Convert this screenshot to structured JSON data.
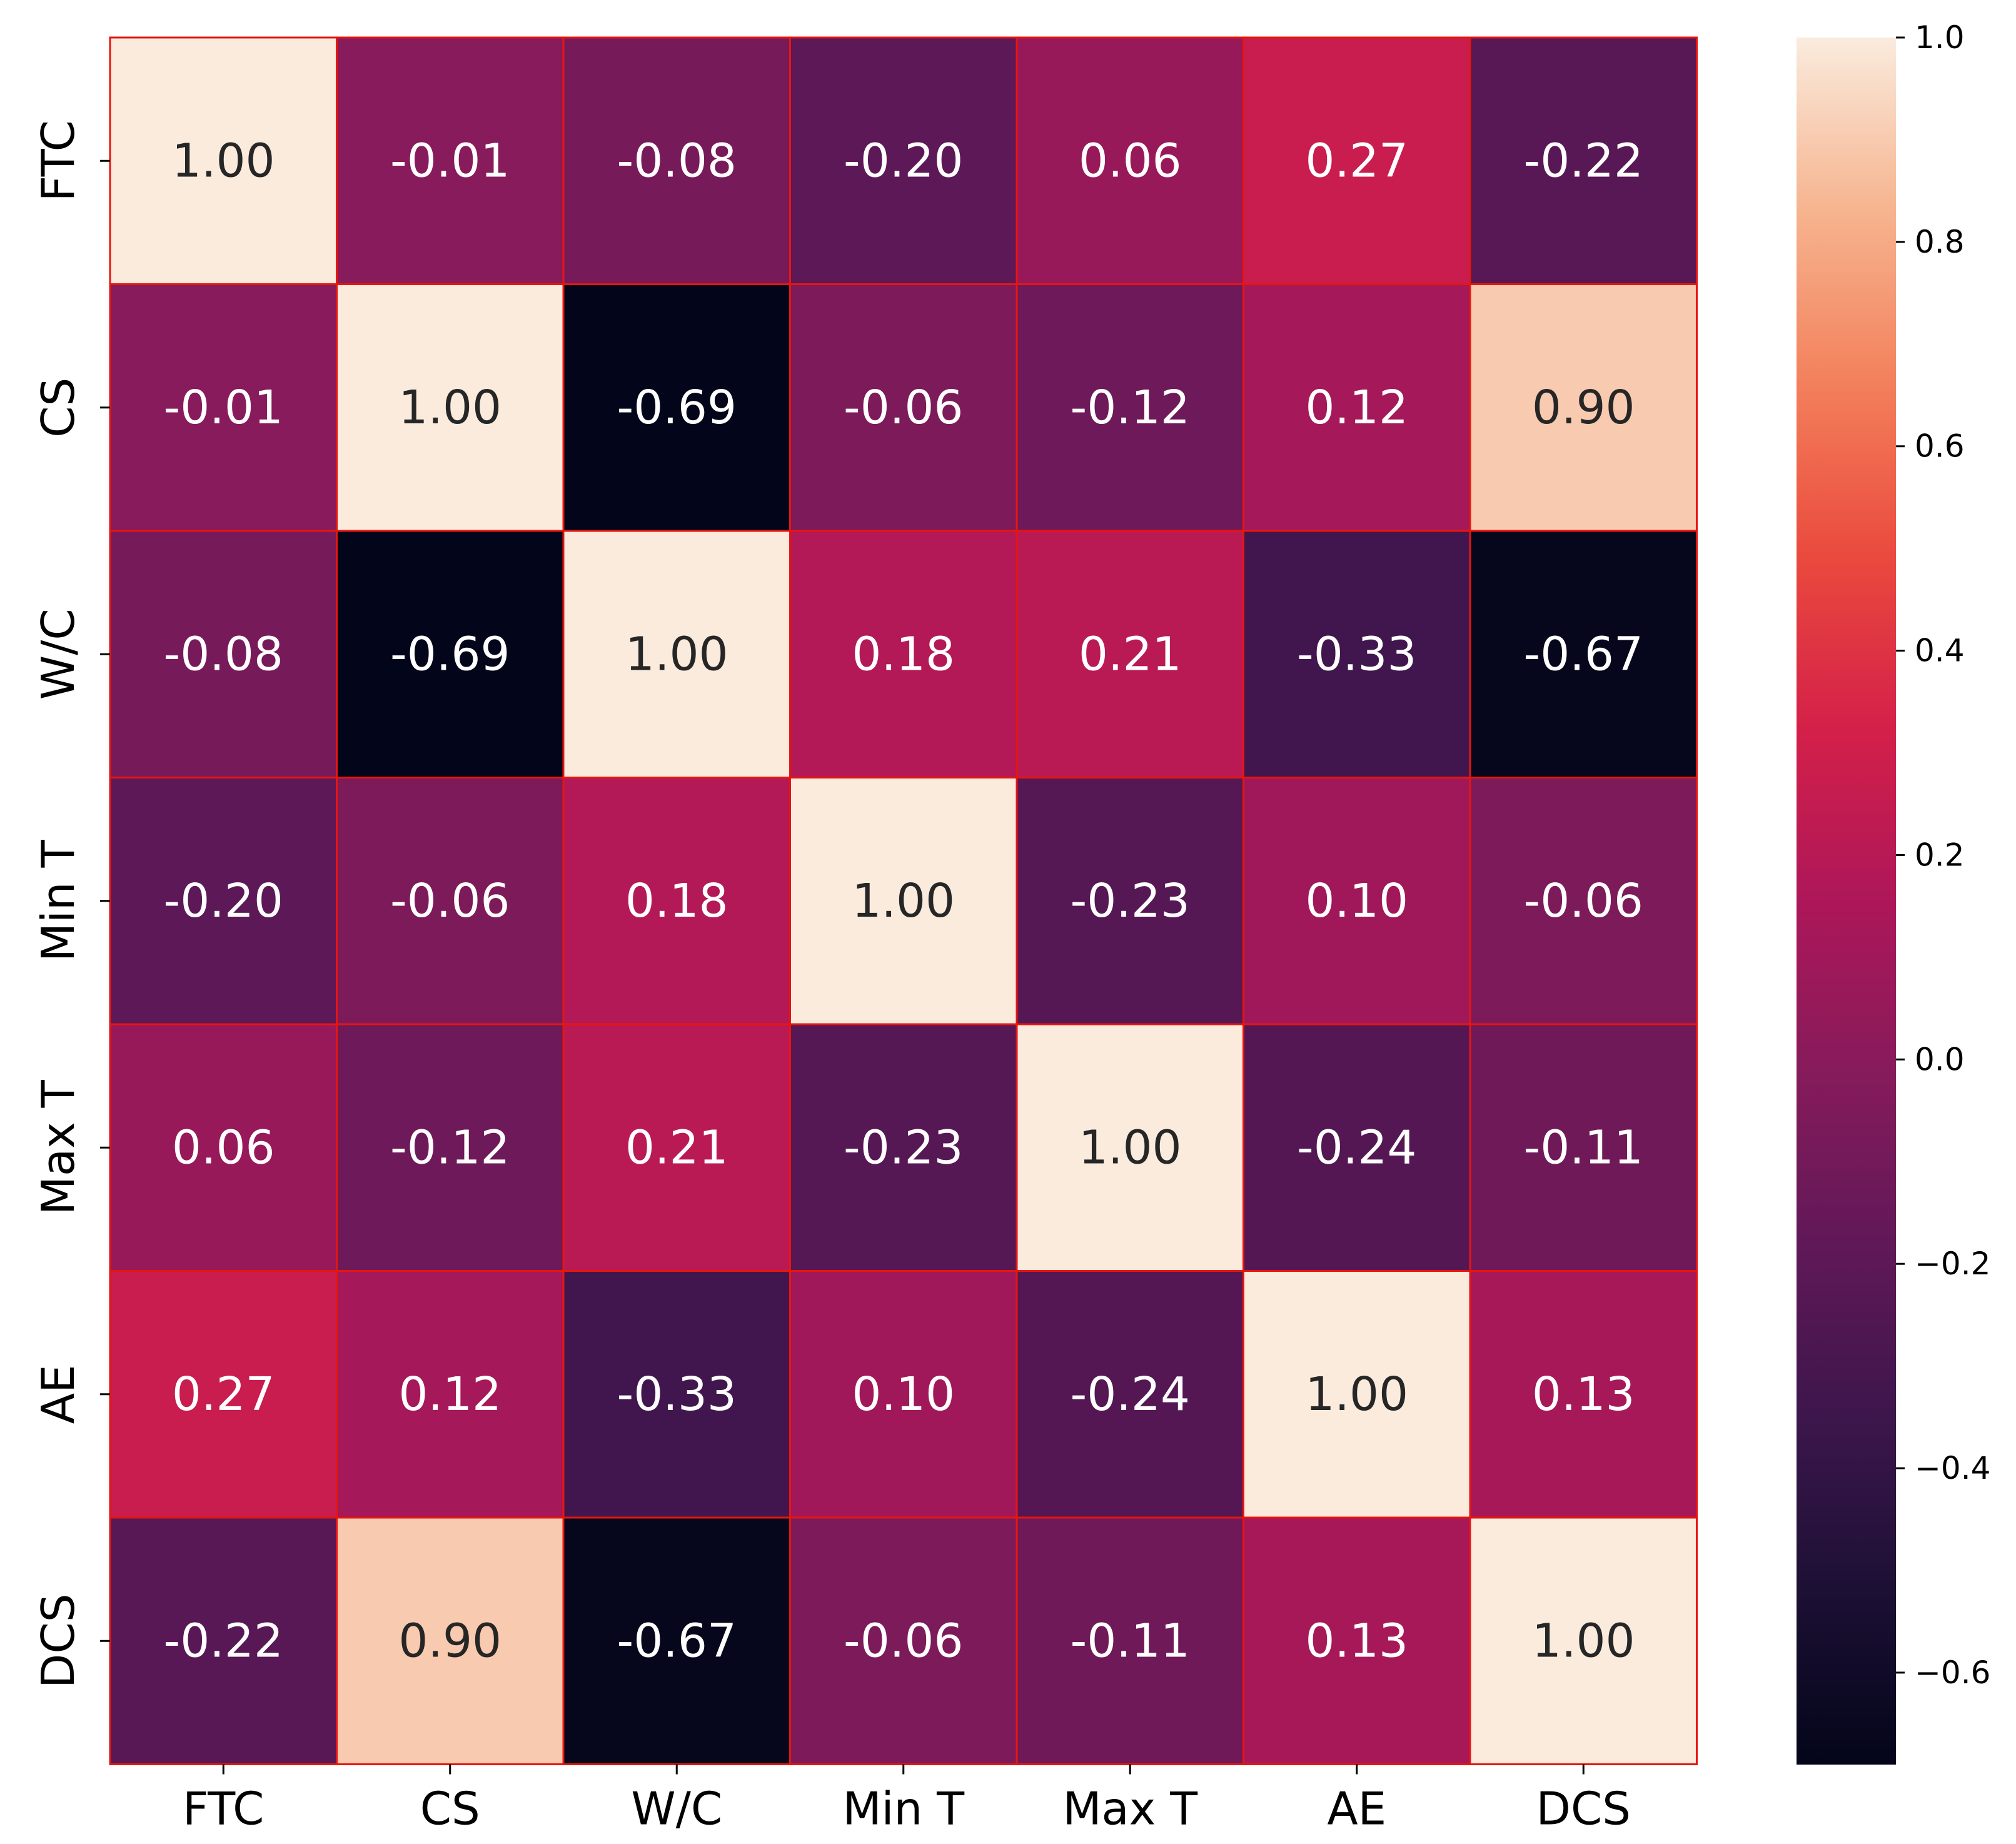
{
  "chart_data": {
    "type": "heatmap",
    "title": "",
    "xlabel": "",
    "ylabel": "",
    "rows": [
      "FTC",
      "CS",
      "W/C",
      "Min T",
      "Max T",
      "AE",
      "DCS"
    ],
    "cols": [
      "FTC",
      "CS",
      "W/C",
      "Min T",
      "Max T",
      "AE",
      "DCS"
    ],
    "values": [
      [
        1.0,
        -0.01,
        -0.08,
        -0.2,
        0.06,
        0.27,
        -0.22
      ],
      [
        -0.01,
        1.0,
        -0.69,
        -0.06,
        -0.12,
        0.12,
        0.9
      ],
      [
        -0.08,
        -0.69,
        1.0,
        0.18,
        0.21,
        -0.33,
        -0.67
      ],
      [
        -0.2,
        -0.06,
        0.18,
        1.0,
        -0.23,
        0.1,
        -0.06
      ],
      [
        0.06,
        -0.12,
        0.21,
        -0.23,
        1.0,
        -0.24,
        -0.11
      ],
      [
        0.27,
        0.12,
        -0.33,
        0.1,
        -0.24,
        1.0,
        0.13
      ],
      [
        -0.22,
        0.9,
        -0.67,
        -0.06,
        -0.11,
        0.13,
        1.0
      ]
    ],
    "annotation_format": "2dp",
    "colormap": "rocket",
    "cell_border_color": "#e8150f",
    "colorbar": {
      "vmin": -0.69,
      "vmax": 1.0,
      "ticks": [
        1.0,
        0.8,
        0.6,
        0.4,
        0.2,
        0.0,
        -0.2,
        -0.4,
        -0.6
      ],
      "tick_labels": [
        "1.0",
        "0.8",
        "0.6",
        "0.4",
        "0.2",
        "0.0",
        "−0.2",
        "−0.4",
        "−0.6"
      ]
    }
  }
}
